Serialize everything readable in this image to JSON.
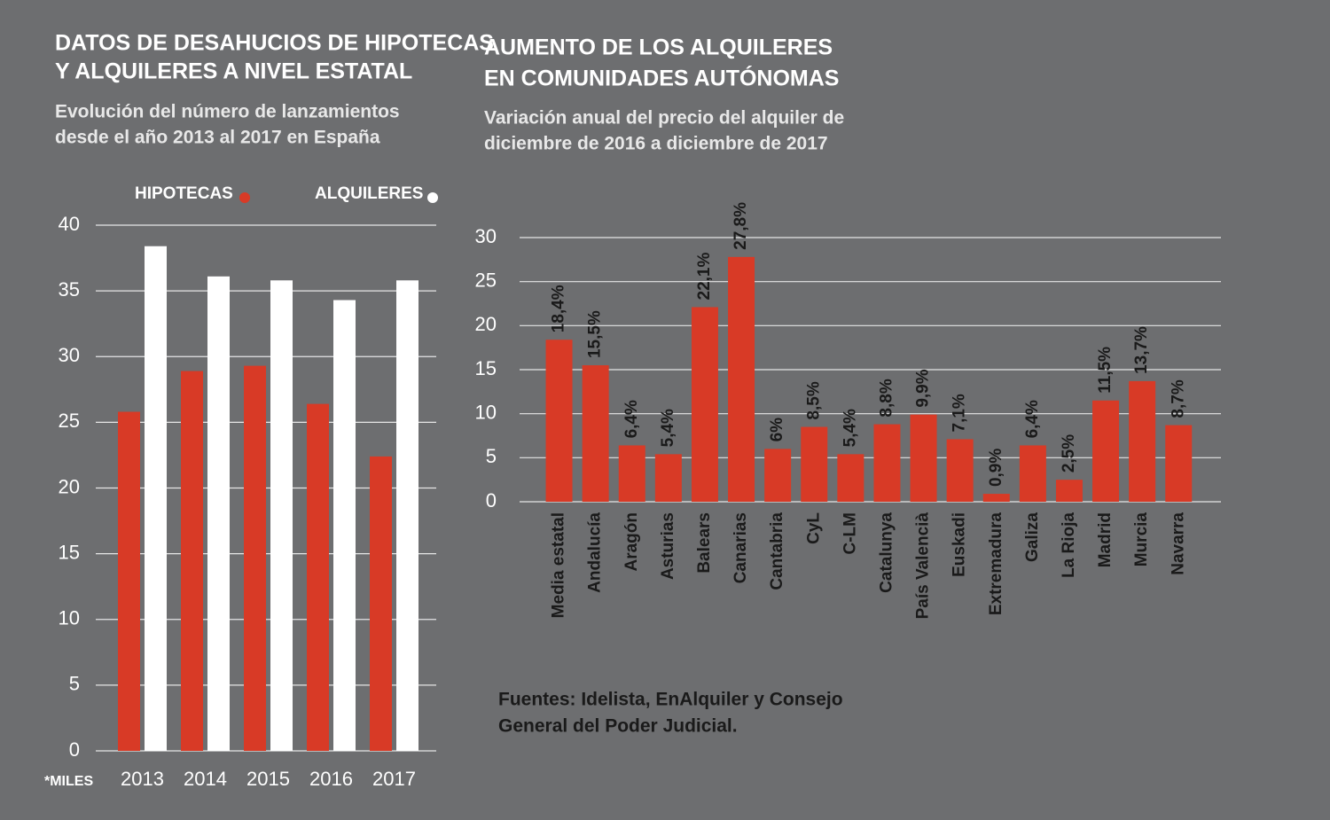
{
  "chart_data": [
    {
      "type": "bar",
      "title": [
        "DATOS DE DESAHUCIOS DE HIPOTECAS",
        "Y ALQUILERES A NIVEL ESTATAL"
      ],
      "subtitle": [
        "Evolución del número de lanzamientos",
        "desde el año 2013 al 2017 en España"
      ],
      "axis_note": "*MILES",
      "categories": [
        "2013",
        "2014",
        "2015",
        "2016",
        "2017"
      ],
      "series": [
        {
          "name": "HIPOTECAS",
          "color": "#d83a26",
          "values": [
            25.8,
            28.9,
            29.3,
            26.4,
            22.4
          ]
        },
        {
          "name": "ALQUILERES",
          "color": "#ffffff",
          "values": [
            38.4,
            36.1,
            35.8,
            34.3,
            35.8
          ]
        }
      ],
      "ylim": [
        0,
        40
      ],
      "yticks": [
        0,
        5,
        10,
        15,
        20,
        25,
        30,
        35,
        40
      ],
      "grid": true,
      "legend": "top"
    },
    {
      "type": "bar",
      "title": [
        "AUMENTO DE LOS ALQUILERES",
        "EN COMUNIDADES AUTÓNOMAS"
      ],
      "subtitle": [
        "Variación anual del precio del alquiler de",
        "diciembre de 2016 a diciembre de 2017"
      ],
      "categories": [
        "Media estatal",
        "Andalucía",
        "Aragón",
        "Asturias",
        "Balears",
        "Canarias",
        "Cantabria",
        "CyL",
        "C-LM",
        "Catalunya",
        "País Valencià",
        "Euskadi",
        "Extremadura",
        "Galiza",
        "La Rioja",
        "Madrid",
        "Murcia",
        "Navarra"
      ],
      "values": [
        18.4,
        15.5,
        6.4,
        5.4,
        22.1,
        27.8,
        6,
        8.5,
        5.4,
        8.8,
        9.9,
        7.1,
        0.9,
        6.4,
        2.5,
        11.5,
        13.7,
        8.7
      ],
      "value_labels": [
        "18,4%",
        "15,5%",
        "6,4%",
        "5,4%",
        "22,1%",
        "27,8%",
        "6%",
        "8,5%",
        "5,4%",
        "8,8%",
        "9,9%",
        "7,1%",
        "0,9%",
        "6,4%",
        "2,5%",
        "11,5%",
        "13,7%",
        "8,7%"
      ],
      "color": "#d83a26",
      "ylim": [
        0,
        30
      ],
      "yticks": [
        0,
        5,
        10,
        15,
        20,
        25,
        30
      ],
      "grid": true,
      "source": [
        "Fuentes: Idelista, EnAlquiler y Consejo",
        "General del Poder Judicial."
      ]
    }
  ]
}
